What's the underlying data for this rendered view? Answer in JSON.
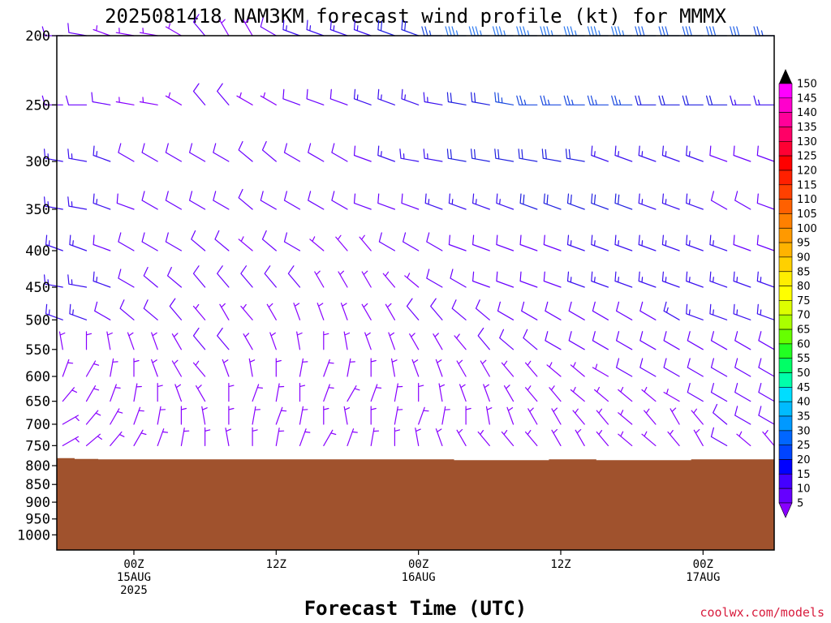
{
  "chart_data": {
    "type": "wind-barb-profile",
    "title": "2025081418 NAM3KM forecast wind profile (kt) for MMMX",
    "xlabel": "Forecast Time (UTC)",
    "credit": "coolwx.com/models",
    "y_axis": {
      "scale": "log-pressure",
      "inverted": true,
      "range_hpa": [
        200,
        1050
      ],
      "ticks": [
        "200",
        "250",
        "300",
        "350",
        "400",
        "450",
        "500",
        "550",
        "600",
        "650",
        "700",
        "750",
        "800",
        "850",
        "900",
        "950",
        "1000"
      ]
    },
    "x_axis": {
      "range_hours": [
        -6.5,
        54
      ],
      "ticks": [
        {
          "hour": 0,
          "lines": [
            "00Z",
            "15AUG",
            "2025"
          ]
        },
        {
          "hour": 12,
          "lines": [
            "12Z"
          ]
        },
        {
          "hour": 24,
          "lines": [
            "00Z",
            "16AUG"
          ]
        },
        {
          "hour": 36,
          "lines": [
            "12Z"
          ]
        },
        {
          "hour": 48,
          "lines": [
            "00Z",
            "17AUG"
          ]
        }
      ]
    },
    "barb_times_hours": [
      -6,
      -4,
      -2,
      0,
      2,
      4,
      6,
      8,
      10,
      12,
      14,
      16,
      18,
      20,
      22,
      24,
      26,
      28,
      30,
      32,
      34,
      36,
      38,
      40,
      42,
      44,
      46,
      48,
      50,
      52,
      54
    ],
    "terrain": {
      "color": "#a0522d",
      "surface_pressure_hpa": [
        781,
        783,
        784,
        784,
        784,
        784,
        784,
        784,
        784,
        784,
        784,
        784,
        784,
        784,
        784,
        784,
        784,
        786,
        786,
        786,
        786,
        784,
        784,
        786,
        786,
        786,
        786,
        784,
        784,
        784,
        784
      ]
    },
    "levels": [
      {
        "p": 200,
        "speed_kt": [
          10,
          10,
          5,
          5,
          5,
          5,
          10,
          5,
          5,
          10,
          15,
          15,
          15,
          15,
          20,
          20,
          25,
          35,
          35,
          35,
          35,
          35,
          35,
          35,
          35,
          30,
          30,
          30,
          30,
          30,
          25
        ],
        "dir_deg": [
          270,
          280,
          290,
          280,
          280,
          300,
          320,
          330,
          330,
          300,
          290,
          290,
          290,
          290,
          290,
          290,
          270,
          270,
          270,
          270,
          270,
          270,
          270,
          270,
          270,
          270,
          270,
          270,
          270,
          270,
          270
        ]
      },
      {
        "p": 250,
        "speed_kt": [
          10,
          10,
          10,
          5,
          5,
          5,
          10,
          10,
          5,
          5,
          10,
          10,
          10,
          15,
          15,
          15,
          15,
          20,
          20,
          25,
          25,
          25,
          25,
          25,
          25,
          20,
          20,
          20,
          20,
          15,
          15
        ],
        "dir_deg": [
          270,
          270,
          280,
          280,
          280,
          300,
          320,
          320,
          300,
          300,
          290,
          290,
          290,
          290,
          290,
          290,
          280,
          280,
          280,
          280,
          270,
          270,
          270,
          270,
          270,
          270,
          270,
          270,
          270,
          270,
          270
        ]
      },
      {
        "p": 300,
        "speed_kt": [
          15,
          15,
          15,
          10,
          10,
          10,
          10,
          10,
          10,
          10,
          10,
          10,
          10,
          10,
          15,
          15,
          15,
          20,
          20,
          20,
          20,
          20,
          20,
          15,
          15,
          15,
          15,
          15,
          10,
          10,
          10
        ],
        "dir_deg": [
          280,
          280,
          290,
          300,
          300,
          300,
          300,
          300,
          310,
          310,
          300,
          300,
          300,
          290,
          290,
          280,
          280,
          280,
          280,
          280,
          280,
          280,
          280,
          290,
          290,
          290,
          290,
          290,
          290,
          290,
          290
        ]
      },
      {
        "p": 350,
        "speed_kt": [
          15,
          15,
          15,
          10,
          10,
          10,
          10,
          10,
          10,
          10,
          10,
          10,
          10,
          10,
          10,
          10,
          15,
          15,
          15,
          15,
          20,
          20,
          20,
          20,
          20,
          15,
          15,
          15,
          10,
          10,
          10
        ],
        "dir_deg": [
          280,
          280,
          290,
          290,
          300,
          300,
          300,
          300,
          310,
          300,
          300,
          300,
          300,
          290,
          290,
          290,
          290,
          290,
          290,
          290,
          290,
          290,
          290,
          290,
          290,
          290,
          290,
          290,
          300,
          300,
          290
        ]
      },
      {
        "p": 400,
        "speed_kt": [
          15,
          15,
          10,
          10,
          10,
          10,
          10,
          10,
          5,
          10,
          10,
          5,
          5,
          5,
          10,
          10,
          10,
          10,
          10,
          10,
          10,
          10,
          15,
          15,
          15,
          15,
          15,
          15,
          15,
          10,
          10
        ],
        "dir_deg": [
          290,
          290,
          290,
          300,
          300,
          300,
          310,
          310,
          310,
          310,
          300,
          310,
          320,
          320,
          300,
          300,
          300,
          290,
          290,
          290,
          290,
          290,
          290,
          290,
          290,
          290,
          290,
          290,
          290,
          290,
          290
        ]
      },
      {
        "p": 450,
        "speed_kt": [
          15,
          15,
          15,
          10,
          10,
          10,
          10,
          10,
          10,
          10,
          10,
          5,
          5,
          5,
          5,
          5,
          10,
          10,
          10,
          10,
          10,
          10,
          15,
          15,
          15,
          15,
          15,
          15,
          15,
          15,
          15
        ],
        "dir_deg": [
          280,
          280,
          290,
          300,
          310,
          310,
          320,
          320,
          320,
          320,
          320,
          330,
          330,
          330,
          320,
          310,
          300,
          300,
          290,
          290,
          290,
          290,
          290,
          290,
          290,
          290,
          290,
          290,
          290,
          290,
          290
        ]
      },
      {
        "p": 500,
        "speed_kt": [
          15,
          15,
          10,
          10,
          10,
          10,
          5,
          5,
          5,
          5,
          5,
          5,
          5,
          5,
          5,
          10,
          10,
          10,
          10,
          10,
          10,
          10,
          10,
          10,
          10,
          10,
          15,
          15,
          15,
          15,
          15
        ],
        "dir_deg": [
          290,
          290,
          300,
          310,
          310,
          320,
          320,
          330,
          320,
          330,
          340,
          340,
          340,
          330,
          330,
          320,
          320,
          310,
          310,
          300,
          300,
          300,
          300,
          300,
          300,
          300,
          300,
          290,
          290,
          290,
          290
        ]
      },
      {
        "p": 550,
        "speed_kt": [
          5,
          5,
          5,
          5,
          5,
          5,
          10,
          10,
          5,
          5,
          5,
          5,
          5,
          5,
          5,
          5,
          5,
          5,
          10,
          10,
          10,
          10,
          10,
          10,
          10,
          10,
          10,
          10,
          10,
          10,
          10
        ],
        "dir_deg": [
          350,
          0,
          350,
          340,
          340,
          330,
          320,
          320,
          330,
          340,
          350,
          0,
          350,
          340,
          340,
          330,
          330,
          320,
          320,
          310,
          310,
          300,
          300,
          300,
          300,
          300,
          300,
          300,
          300,
          300,
          300
        ]
      },
      {
        "p": 600,
        "speed_kt": [
          5,
          5,
          5,
          5,
          5,
          5,
          5,
          5,
          5,
          5,
          5,
          5,
          5,
          5,
          5,
          5,
          5,
          5,
          5,
          5,
          5,
          5,
          5,
          5,
          10,
          10,
          10,
          10,
          10,
          10,
          10
        ],
        "dir_deg": [
          20,
          30,
          10,
          0,
          340,
          330,
          320,
          340,
          350,
          0,
          10,
          20,
          10,
          0,
          350,
          340,
          340,
          330,
          330,
          320,
          320,
          310,
          310,
          300,
          300,
          300,
          300,
          300,
          300,
          300,
          300
        ]
      },
      {
        "p": 650,
        "speed_kt": [
          5,
          5,
          5,
          5,
          5,
          5,
          5,
          5,
          5,
          5,
          5,
          5,
          5,
          5,
          5,
          5,
          5,
          5,
          5,
          5,
          5,
          5,
          5,
          5,
          5,
          5,
          5,
          10,
          10,
          10,
          10
        ],
        "dir_deg": [
          40,
          30,
          20,
          10,
          0,
          340,
          330,
          0,
          20,
          10,
          0,
          20,
          30,
          20,
          10,
          0,
          350,
          340,
          340,
          330,
          320,
          320,
          310,
          310,
          310,
          310,
          300,
          300,
          300,
          300,
          300
        ]
      },
      {
        "p": 700,
        "speed_kt": [
          5,
          5,
          5,
          5,
          5,
          5,
          5,
          5,
          5,
          5,
          5,
          5,
          5,
          5,
          5,
          5,
          5,
          5,
          5,
          5,
          5,
          5,
          5,
          5,
          5,
          5,
          5,
          5,
          10,
          10,
          10
        ],
        "dir_deg": [
          60,
          40,
          30,
          20,
          10,
          0,
          350,
          0,
          10,
          20,
          10,
          0,
          350,
          0,
          10,
          20,
          10,
          0,
          350,
          340,
          330,
          330,
          320,
          320,
          310,
          320,
          330,
          320,
          310,
          300,
          300
        ]
      },
      {
        "p": 750,
        "speed_kt": [
          5,
          5,
          5,
          5,
          5,
          5,
          5,
          5,
          5,
          5,
          5,
          5,
          5,
          5,
          5,
          5,
          5,
          5,
          5,
          5,
          5,
          5,
          5,
          5,
          5,
          5,
          5,
          5,
          10,
          5,
          5
        ],
        "dir_deg": [
          60,
          50,
          40,
          30,
          20,
          10,
          0,
          350,
          0,
          10,
          20,
          30,
          20,
          10,
          0,
          350,
          340,
          330,
          320,
          320,
          320,
          330,
          330,
          320,
          310,
          310,
          320,
          330,
          300,
          310,
          320
        ]
      }
    ],
    "colorbar": {
      "labels": [
        "150",
        "145",
        "140",
        "135",
        "130",
        "125",
        "120",
        "115",
        "110",
        "105",
        "100",
        "95",
        "90",
        "85",
        "80",
        "75",
        "70",
        "65",
        "60",
        "55",
        "50",
        "45",
        "40",
        "35",
        "30",
        "25",
        "20",
        "15",
        "10",
        "5"
      ],
      "colors": [
        "#ff00ff",
        "#ff00cc",
        "#ff0099",
        "#ff0066",
        "#ff0033",
        "#ff0000",
        "#ff2000",
        "#ff4000",
        "#ff6000",
        "#ff8000",
        "#ff9900",
        "#ffb300",
        "#ffd000",
        "#ffee00",
        "#ffff00",
        "#ddff00",
        "#aaff00",
        "#66ff00",
        "#22ff22",
        "#00ff66",
        "#00ffaa",
        "#00ddff",
        "#00bbff",
        "#0099ff",
        "#0066ff",
        "#0044ff",
        "#0000ff",
        "#4400ff",
        "#6600ff",
        "#8800ff"
      ],
      "cap_top_color": "#000000",
      "cap_bottom_color": "#8800ff"
    }
  }
}
